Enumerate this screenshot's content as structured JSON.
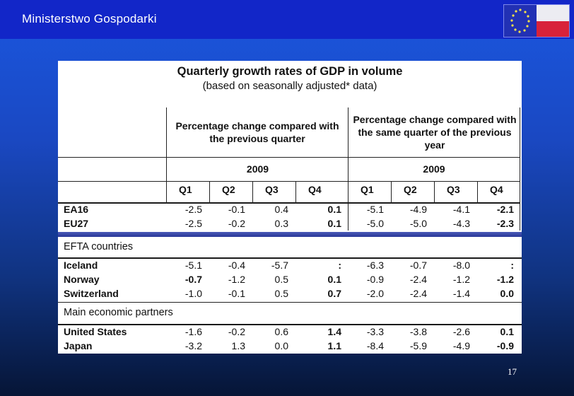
{
  "header": {
    "ministry_name": "Ministerstwo Gospodarki"
  },
  "table": {
    "title": "Quarterly growth rates of GDP in volume",
    "subtitle": "(based on seasonally adjusted* data)",
    "group_headers": {
      "previous_quarter": "Percentage change compared with the previous quarter",
      "previous_year": "Percentage change compared with the same quarter of the previous year"
    },
    "years": [
      "2009",
      "2009"
    ],
    "quarters": [
      "Q1",
      "Q2",
      "Q3",
      "Q4",
      "Q1",
      "Q2",
      "Q3",
      "Q4"
    ],
    "rows": {
      "ea16": {
        "label": "EA16",
        "values": [
          "-2.5",
          "-0.1",
          "0.4",
          "0.1",
          "-5.1",
          "-4.9",
          "-4.1",
          "-2.1"
        ]
      },
      "eu27": {
        "label": "EU27",
        "values": [
          "-2.5",
          "-0.2",
          "0.3",
          "0.1",
          "-5.0",
          "-5.0",
          "-4.3",
          "-2.3"
        ]
      },
      "iceland": {
        "label": "Iceland",
        "values": [
          "-5.1",
          "-0.4",
          "-5.7",
          ":",
          "-6.3",
          "-0.7",
          "-8.0",
          ":"
        ]
      },
      "norway": {
        "label": "Norway",
        "values": [
          "-0.7",
          "-1.2",
          "0.5",
          "0.1",
          "-0.9",
          "-2.4",
          "-1.2",
          "-1.2"
        ]
      },
      "switzerland": {
        "label": "Switzerland",
        "values": [
          "-1.0",
          "-0.1",
          "0.5",
          "0.7",
          "-2.0",
          "-2.4",
          "-1.4",
          "0.0"
        ]
      },
      "united_states": {
        "label": "United States",
        "values": [
          "-1.6",
          "-0.2",
          "0.6",
          "1.4",
          "-3.3",
          "-3.8",
          "-2.6",
          "0.1"
        ]
      },
      "japan": {
        "label": "Japan",
        "values": [
          "-3.2",
          "1.3",
          "0.0",
          "1.1",
          "-8.4",
          "-5.9",
          "-4.9",
          "-0.9"
        ]
      }
    },
    "sections": {
      "efta": "EFTA countries",
      "partners": "Main economic partners"
    }
  },
  "footer": {
    "page_number": "17"
  },
  "colors": {
    "background": "#1a48c2",
    "header_bar": "#1226c8",
    "flag_red": "#d8223a"
  }
}
